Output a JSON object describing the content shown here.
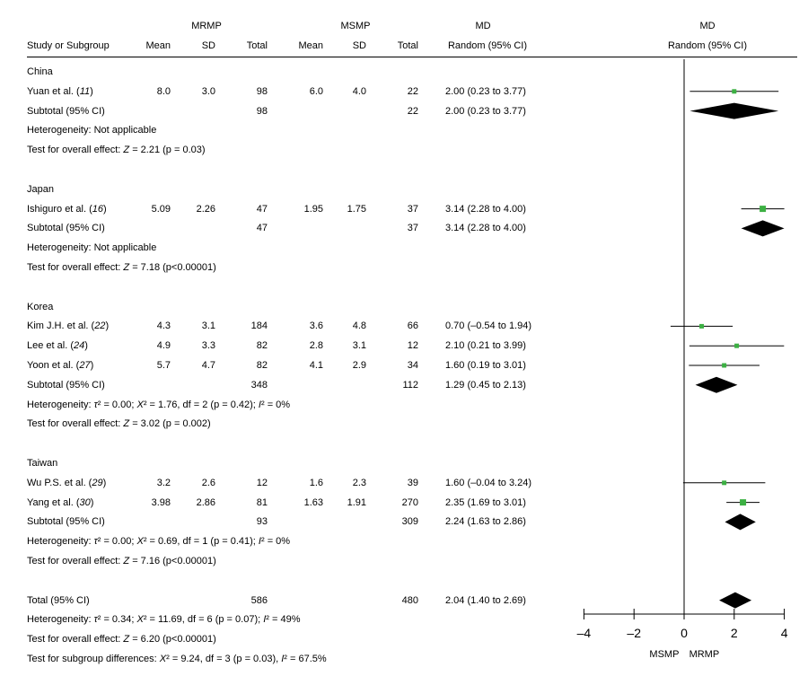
{
  "header": {
    "group1": "MRMP",
    "group2": "MSMP",
    "md_text": "MD",
    "md_plot": "MD",
    "study_col": "Study or Subgroup",
    "mean1": "Mean",
    "sd1": "SD",
    "total1": "Total",
    "mean2": "Mean",
    "sd2": "SD",
    "total2": "Total",
    "ci_text": "Random (95% CI)",
    "ci_plot": "Random (95% CI)"
  },
  "rows": [
    {
      "type": "group",
      "label": "China"
    },
    {
      "type": "study",
      "name": "Yuan et al. (",
      "ref": "11",
      "mean1": "8.0",
      "sd1": "3.0",
      "n1": "98",
      "mean2": "6.0",
      "sd2": "4.0",
      "n2": "22",
      "md": "2.00 (0.23 to 3.77)"
    },
    {
      "type": "subtotal",
      "name": "Subtotal (95% CI)",
      "n1": "98",
      "n2": "22",
      "md": "2.00 (0.23 to 3.77)"
    },
    {
      "type": "note",
      "text": "Heterogeneity: Not applicable"
    },
    {
      "type": "note",
      "pre": "Test for overall effect: ",
      "ital": "Z",
      "post": " = 2.21 (p = 0.03)"
    },
    {
      "type": "blank"
    },
    {
      "type": "group",
      "label": "Japan"
    },
    {
      "type": "study",
      "name": "Ishiguro et al. (",
      "ref": "16",
      "mean1": "5.09",
      "sd1": "2.26",
      "n1": "47",
      "mean2": "1.95",
      "sd2": "1.75",
      "n2": "37",
      "md": "3.14 (2.28 to 4.00)"
    },
    {
      "type": "subtotal",
      "name": "Subtotal (95% CI)",
      "n1": "47",
      "n2": "37",
      "md": "3.14 (2.28 to 4.00)"
    },
    {
      "type": "note",
      "text": "Heterogeneity: Not applicable"
    },
    {
      "type": "note",
      "pre": "Test for overall effect: ",
      "ital": "Z",
      "post": " = 7.18 (p<0.00001)"
    },
    {
      "type": "blank"
    },
    {
      "type": "group",
      "label": "Korea"
    },
    {
      "type": "study",
      "name": "Kim J.H. et al. (",
      "ref": "22",
      "mean1": "4.3",
      "sd1": "3.1",
      "n1": "184",
      "mean2": "3.6",
      "sd2": "4.8",
      "n2": "66",
      "md": "0.70 (–0.54 to 1.94)"
    },
    {
      "type": "study",
      "name": "Lee et al. (",
      "ref": "24",
      "mean1": "4.9",
      "sd1": "3.3",
      "n1": "82",
      "mean2": "2.8",
      "sd2": "3.1",
      "n2": "12",
      "md": "2.10 (0.21 to 3.99)"
    },
    {
      "type": "study",
      "name": "Yoon et al. (",
      "ref": "27",
      "mean1": "5.7",
      "sd1": "4.7",
      "n1": "82",
      "mean2": "4.1",
      "sd2": "2.9",
      "n2": "34",
      "md": "1.60 (0.19 to 3.01)"
    },
    {
      "type": "subtotal",
      "name": "Subtotal (95% CI)",
      "n1": "348",
      "n2": "112",
      "md": "1.29 (0.45 to 2.13)"
    },
    {
      "type": "note",
      "pre": "Heterogeneity: ",
      "ital": "τ",
      "post": "² = 0.00; ",
      "ital2": "X",
      "post2": "² = 1.76, df = 2 (p = 0.42); ",
      "ital3": "I",
      "post3": "² = 0%"
    },
    {
      "type": "note",
      "pre": "Test for overall effect: ",
      "ital": "Z",
      "post": " = 3.02 (p = 0.002)"
    },
    {
      "type": "blank"
    },
    {
      "type": "group",
      "label": "Taiwan"
    },
    {
      "type": "study",
      "name": "Wu P.S. et al. (",
      "ref": "29",
      "mean1": "3.2",
      "sd1": "2.6",
      "n1": "12",
      "mean2": "1.6",
      "sd2": "2.3",
      "n2": "39",
      "md": "1.60 (–0.04 to 3.24)"
    },
    {
      "type": "study",
      "name": "Yang et al. (",
      "ref": "30",
      "mean1": "3.98",
      "sd1": "2.86",
      "n1": "81",
      "mean2": "1.63",
      "sd2": "1.91",
      "n2": "270",
      "md": "2.35 (1.69 to 3.01)"
    },
    {
      "type": "subtotal",
      "name": "Subtotal (95% CI)",
      "n1": "93",
      "n2": "309",
      "md": "2.24 (1.63 to 2.86)"
    },
    {
      "type": "note",
      "pre": "Heterogeneity: ",
      "ital": "τ",
      "post": "² = 0.00; ",
      "ital2": "X",
      "post2": "² = 0.69, df = 1 (p = 0.41); ",
      "ital3": "I",
      "post3": "² = 0%"
    },
    {
      "type": "note",
      "pre": "Test for overall effect: ",
      "ital": "Z",
      "post": " = 7.16 (p<0.00001)"
    },
    {
      "type": "blank"
    },
    {
      "type": "subtotal",
      "name": "Total (95% CI)",
      "n1": "586",
      "n2": "480",
      "md": "2.04 (1.40 to 2.69)"
    },
    {
      "type": "note",
      "pre": "Heterogeneity: ",
      "ital": "τ",
      "post": "² = 0.34; ",
      "ital2": "X",
      "post2": "² = 11.69, df = 6 (p = 0.07); ",
      "ital3": "I",
      "post3": "² = 49%"
    },
    {
      "type": "note",
      "pre": "Test for overall effect: ",
      "ital": "Z",
      "post": " = 6.20 (p<0.00001)"
    },
    {
      "type": "note",
      "pre": "Test for subgroup differences: ",
      "ital": "X",
      "post": "² = 9.24, df = 3 (p = 0.03), ",
      "ital2": "I",
      "post2": "² = 67.5%"
    }
  ],
  "chart_data": {
    "type": "forest",
    "xlim": [
      -4,
      4
    ],
    "ticks": [
      -4,
      -2,
      0,
      2,
      4
    ],
    "tick_labels": [
      "–4",
      "–2",
      "0",
      "2",
      "4"
    ],
    "left_label": "MSMP",
    "right_label": "MRMP",
    "marker_color": "#3cb043",
    "studies": [
      {
        "row": 1,
        "est": 2.0,
        "lo": 0.23,
        "hi": 3.77
      },
      {
        "row": 7,
        "est": 3.14,
        "lo": 2.28,
        "hi": 4.0
      },
      {
        "row": 13,
        "est": 0.7,
        "lo": -0.54,
        "hi": 1.94
      },
      {
        "row": 14,
        "est": 2.1,
        "lo": 0.21,
        "hi": 3.99
      },
      {
        "row": 15,
        "est": 1.6,
        "lo": 0.19,
        "hi": 3.01
      },
      {
        "row": 21,
        "est": 1.6,
        "lo": -0.04,
        "hi": 3.24
      },
      {
        "row": 22,
        "est": 2.35,
        "lo": 1.69,
        "hi": 3.01
      }
    ],
    "diamonds": [
      {
        "row": 2,
        "est": 2.0,
        "lo": 0.23,
        "hi": 3.77
      },
      {
        "row": 8,
        "est": 3.14,
        "lo": 2.28,
        "hi": 4.0
      },
      {
        "row": 16,
        "est": 1.29,
        "lo": 0.45,
        "hi": 2.13
      },
      {
        "row": 23,
        "est": 2.24,
        "lo": 1.63,
        "hi": 2.86
      },
      {
        "row": 27,
        "est": 2.04,
        "lo": 1.4,
        "hi": 2.69
      }
    ]
  }
}
